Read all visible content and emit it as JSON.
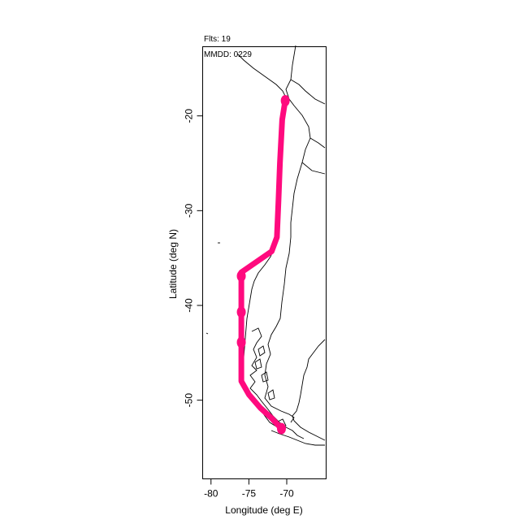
{
  "header": {
    "flights": "Flts: 19",
    "date": "MMDD: 0229"
  },
  "chart_data": {
    "type": "line",
    "xlabel": "Longitude (deg E)",
    "ylabel": "Latitude (deg N)",
    "xlim": [
      -81.1,
      -64.8
    ],
    "ylim": [
      -58.3,
      -12.7
    ],
    "xticks": [
      -80,
      -75,
      -70
    ],
    "yticks": [
      -20,
      -30,
      -40,
      -50
    ],
    "series": [
      {
        "color": "#ff0a7e",
        "points": [
          [
            -70.2,
            -18.4
          ],
          [
            -70.6,
            -20.4
          ],
          [
            -70.9,
            -25.0
          ],
          [
            -71.1,
            -29.0
          ],
          [
            -71.3,
            -32.8
          ],
          [
            -72.0,
            -34.3
          ],
          [
            -76.0,
            -36.5
          ],
          [
            -76.0,
            -40.0
          ],
          [
            -76.0,
            -44.0
          ],
          [
            -76.0,
            -48.0
          ],
          [
            -75.0,
            -49.4
          ],
          [
            -73.5,
            -50.8
          ],
          [
            -72.0,
            -51.9
          ],
          [
            -70.7,
            -53.0
          ]
        ],
        "markers": [
          [
            -70.2,
            -18.4
          ],
          [
            -76.0,
            -36.9
          ],
          [
            -76.0,
            -40.7
          ],
          [
            -76.0,
            -43.9
          ],
          [
            -70.7,
            -53.0
          ]
        ]
      }
    ]
  }
}
